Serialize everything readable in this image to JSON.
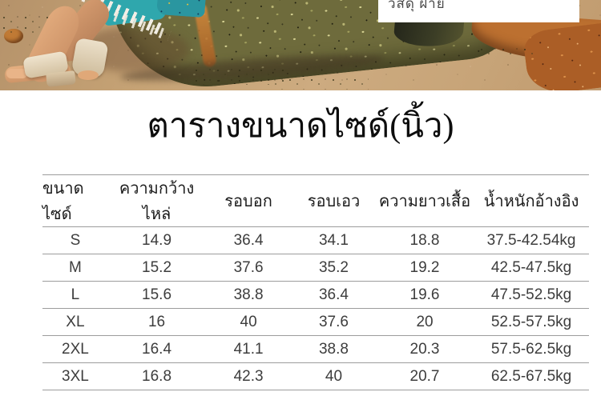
{
  "photo": {
    "material_label": "วัสดุ ฝ้าย"
  },
  "title": "ตารางขนาดไซด์(นิ้ว)",
  "table": {
    "columns": [
      "ขนาดไซด์",
      "ความกว้างไหล่",
      "รอบอก",
      "รอบเอว",
      "ความยาวเสื้อ",
      "น้ำหนักอ้างอิง"
    ],
    "rows": [
      [
        "S",
        "14.9",
        "36.4",
        "34.1",
        "18.8",
        "37.5-42.54kg"
      ],
      [
        "M",
        "15.2",
        "37.6",
        "35.2",
        "19.2",
        "42.5-47.5kg"
      ],
      [
        "L",
        "15.6",
        "38.8",
        "36.4",
        "19.6",
        "47.5-52.5kg"
      ],
      [
        "XL",
        "16",
        "40",
        "37.6",
        "20",
        "52.5-57.5kg"
      ],
      [
        "2XL",
        "16.4",
        "41.1",
        "38.8",
        "20.3",
        "57.5-62.5kg"
      ],
      [
        "3XL",
        "16.8",
        "42.3",
        "40",
        "20.7",
        "62.5-67.5kg"
      ]
    ]
  },
  "palette": {
    "sand": "#c9a87c",
    "moss_rock": "#6e6b3c",
    "rust_rock": "#bc7030",
    "skin": "#d8a175",
    "sandal": "#e6d9c4",
    "dress_teal": "#2fa7ad",
    "table_line": "#9c9c9c",
    "value_text": "#3d3d3d"
  }
}
